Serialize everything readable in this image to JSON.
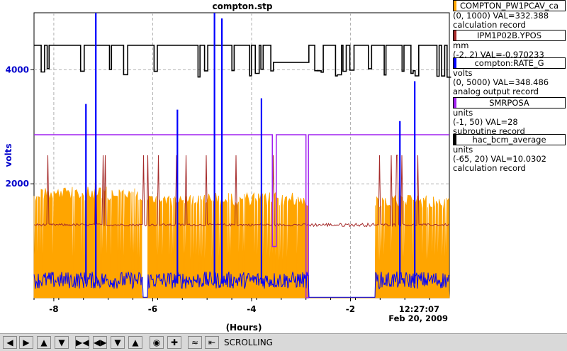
{
  "chart_data": {
    "type": "line",
    "title": "compton.stp",
    "xlabel": "(Hours)",
    "ylabel": "volts",
    "xlim": [
      -8.4,
      0
    ],
    "ylim": [
      0,
      5000
    ],
    "x_ticks": [
      -8,
      -6,
      -4,
      -2
    ],
    "y_ticks": [
      2000,
      4000
    ],
    "time_label": "12:27:07",
    "date_label": "Feb 20, 2009",
    "grid": true,
    "series": [
      {
        "name": "COMPTON_PW1PCAV_ca",
        "color": "#ffa500",
        "range": "(0, 1000)",
        "value": "VAL=332.388",
        "record": "calculation record",
        "segments": [
          {
            "x0": -8.4,
            "x1": -6.2,
            "base": 1300,
            "high": 1950
          },
          {
            "x0": -6.2,
            "x1": -6.1,
            "base": 0,
            "high": 0
          },
          {
            "x0": -6.1,
            "x1": -2.85,
            "base": 1250,
            "high": 1850
          },
          {
            "x0": -2.85,
            "x1": -1.5,
            "base": 0,
            "high": 0
          },
          {
            "x0": -1.5,
            "x1": 0,
            "base": 1200,
            "high": 1800
          }
        ]
      },
      {
        "name": "IPM1P02B.YPOS",
        "color": "#a52a2a",
        "unit": "mm",
        "range": "(-2, 2)",
        "value": "VAL=-0.970233",
        "base_level": 1280,
        "spike_level": 2500
      },
      {
        "name": "compton:RATE_G",
        "color": "#0000ff",
        "unit": "volts",
        "range": "(0, 5000)",
        "value": "VAL=348.486",
        "record": "analog output record",
        "base_level": 250,
        "spikes": [
          [
            -7.15,
            5000
          ],
          [
            -7.35,
            3400
          ],
          [
            -5.5,
            3300
          ],
          [
            -4.75,
            5000
          ],
          [
            -4.6,
            4900
          ],
          [
            -3.8,
            3500
          ],
          [
            -1.0,
            3100
          ],
          [
            -0.7,
            3800
          ]
        ]
      },
      {
        "name": "SMRPOSA",
        "color": "#a020f0",
        "unit": "units",
        "range": "(-1, 50)",
        "value": "VAL=28",
        "record": "subroutine record",
        "level": 2860,
        "dips": [
          [
            -3.58,
            -3.5,
            900
          ],
          [
            -2.9,
            -2.85,
            0
          ]
        ]
      },
      {
        "name": "hac_bcm_average",
        "color": "#000000",
        "unit": "units",
        "range": "(-65, 20)",
        "value": "VAL=10.0302",
        "record": "calculation record",
        "level": 4430,
        "low_level": 3870,
        "step": [
          -3.6,
          -2.85,
          4130
        ]
      }
    ]
  },
  "toolbar": {
    "buttons": [
      "arrow-left-icon",
      "arrow-right-icon",
      "arrow-up-icon",
      "arrow-down-icon",
      "zoom-in-x-icon",
      "zoom-out-x-icon",
      "zoom-in-y-icon",
      "zoom-out-y-icon",
      "autoscale-icon",
      "crosshair-icon",
      "stagger-icon",
      "export-icon"
    ],
    "status": "SCROLLING"
  }
}
